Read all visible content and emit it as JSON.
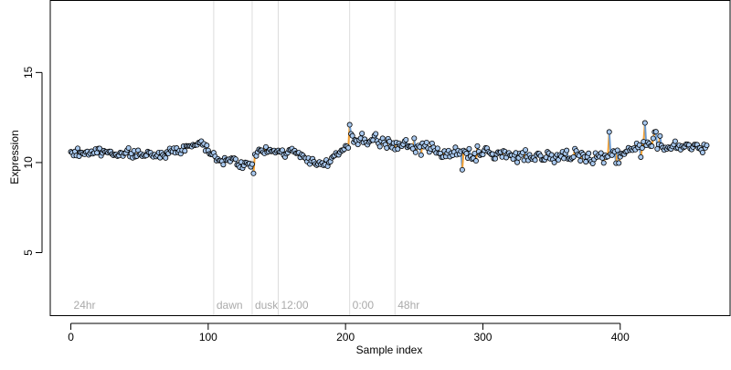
{
  "chart_data": {
    "type": "scatter",
    "title": "",
    "xlabel": "Sample index",
    "ylabel": "Expression",
    "xlim": [
      -15,
      480
    ],
    "ylim": [
      1.5,
      19
    ],
    "xticks": [
      0,
      100,
      200,
      300,
      400
    ],
    "yticks": [
      5,
      10,
      15
    ],
    "grid": false,
    "vertical_markers": [
      {
        "x": 0,
        "label": "24hr",
        "line": false
      },
      {
        "x": 104,
        "label": "dawn",
        "line": true
      },
      {
        "x": 132,
        "label": "dusk",
        "line": true
      },
      {
        "x": 151,
        "label": "12:00",
        "line": true
      },
      {
        "x": 203,
        "label": "0:00",
        "line": true
      },
      {
        "x": 236,
        "label": "48hr",
        "line": true
      }
    ],
    "line_colors": {
      "up": "#f5a030",
      "down": "#6a9ad0"
    },
    "point_fill": "#a8c8ee",
    "point_stroke": "#000000",
    "segments": [
      {
        "x_start": 0,
        "x_end": 20,
        "y_start": 10.5,
        "y_end": 10.6,
        "noise": 0.22
      },
      {
        "x_start": 20,
        "x_end": 60,
        "y_start": 10.6,
        "y_end": 10.4,
        "noise": 0.22
      },
      {
        "x_start": 60,
        "x_end": 80,
        "y_start": 10.4,
        "y_end": 10.7,
        "noise": 0.22
      },
      {
        "x_start": 80,
        "x_end": 95,
        "y_start": 10.7,
        "y_end": 11.2,
        "noise": 0.2
      },
      {
        "x_start": 95,
        "x_end": 104,
        "y_start": 11.0,
        "y_end": 10.5,
        "noise": 0.2
      },
      {
        "x_start": 104,
        "x_end": 132,
        "y_start": 10.3,
        "y_end": 9.8,
        "noise": 0.3
      },
      {
        "x_start": 132,
        "x_end": 151,
        "y_start": 10.6,
        "y_end": 10.6,
        "noise": 0.25
      },
      {
        "x_start": 151,
        "x_end": 170,
        "y_start": 10.7,
        "y_end": 10.4,
        "noise": 0.25
      },
      {
        "x_start": 170,
        "x_end": 185,
        "y_start": 10.2,
        "y_end": 9.9,
        "noise": 0.25
      },
      {
        "x_start": 185,
        "x_end": 203,
        "y_start": 10.0,
        "y_end": 10.9,
        "noise": 0.25
      },
      {
        "x_start": 203,
        "x_end": 236,
        "y_start": 11.3,
        "y_end": 11.0,
        "noise": 0.35
      },
      {
        "x_start": 236,
        "x_end": 270,
        "y_start": 11.0,
        "y_end": 10.7,
        "noise": 0.4
      },
      {
        "x_start": 270,
        "x_end": 300,
        "y_start": 10.5,
        "y_end": 10.5,
        "noise": 0.4
      },
      {
        "x_start": 300,
        "x_end": 360,
        "y_start": 10.5,
        "y_end": 10.3,
        "noise": 0.35
      },
      {
        "x_start": 360,
        "x_end": 400,
        "y_start": 10.3,
        "y_end": 10.4,
        "noise": 0.4
      },
      {
        "x_start": 400,
        "x_end": 430,
        "y_start": 10.5,
        "y_end": 11.3,
        "noise": 0.45
      },
      {
        "x_start": 430,
        "x_end": 463,
        "y_start": 10.9,
        "y_end": 10.8,
        "noise": 0.3
      }
    ],
    "n_points": 464
  }
}
